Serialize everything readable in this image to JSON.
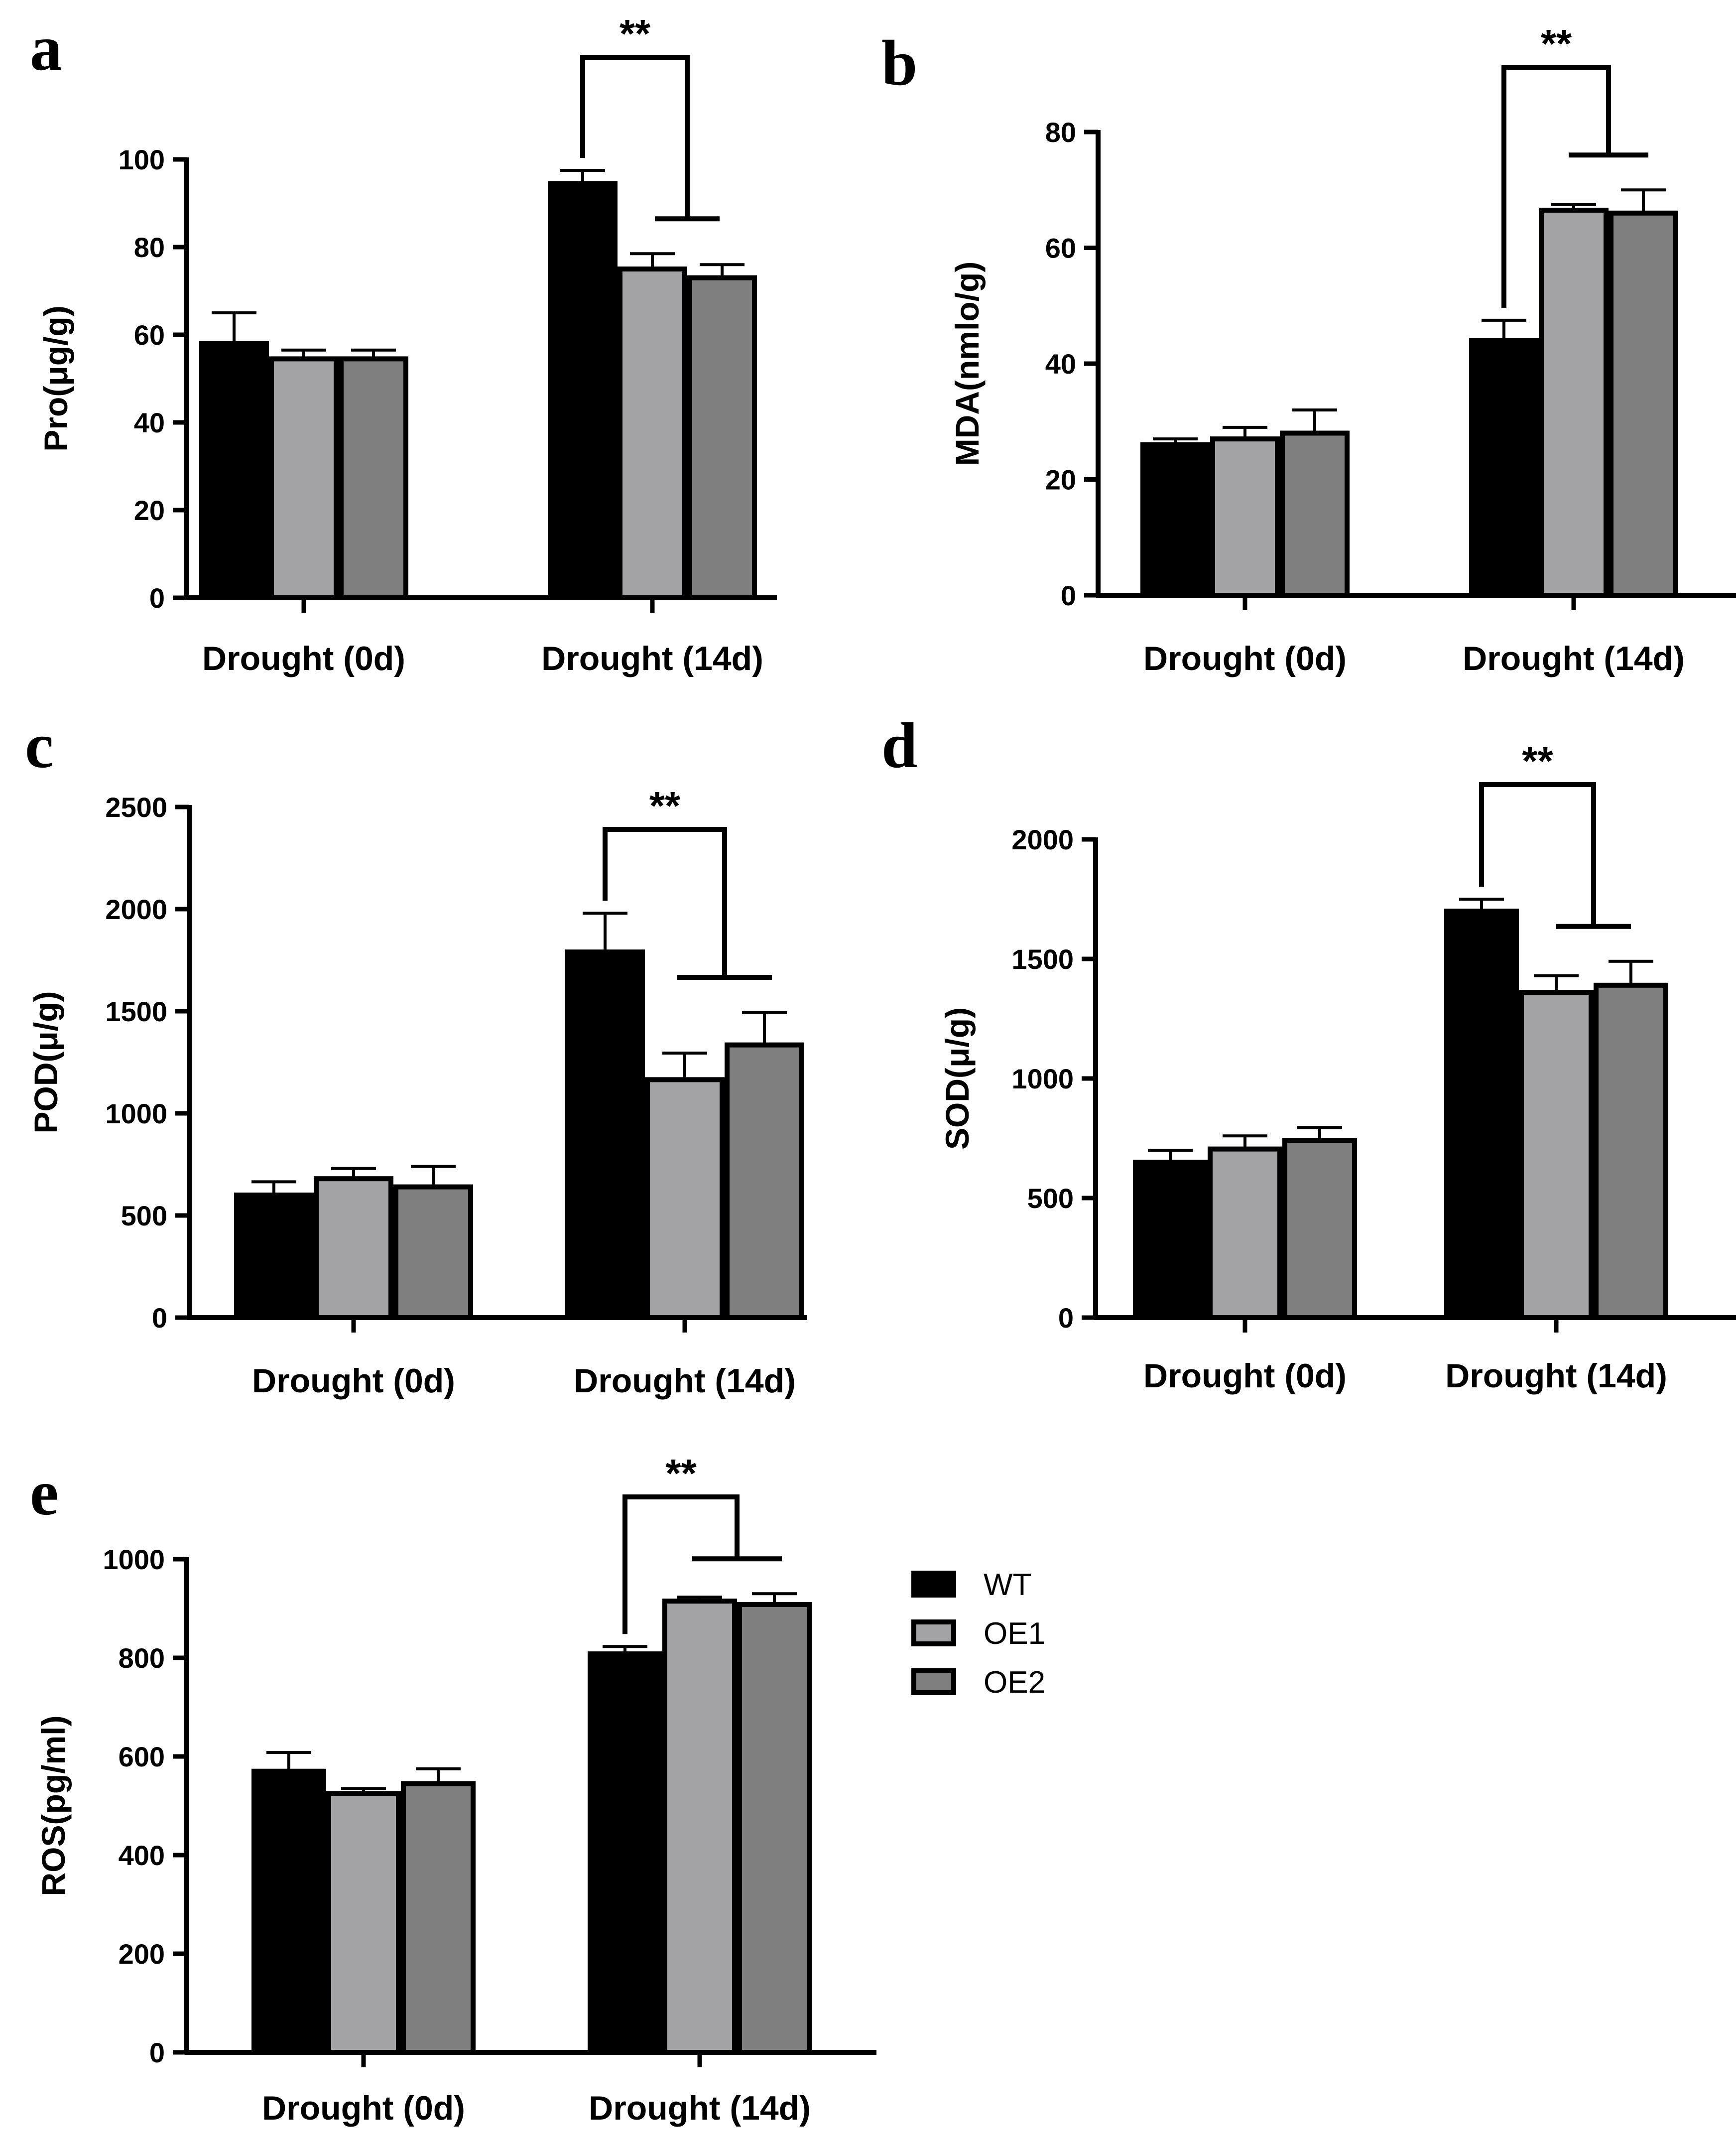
{
  "figure": {
    "legend": [
      {
        "label": "WT",
        "color": "#000000"
      },
      {
        "label": "OE1",
        "color": "#a3a3a6"
      },
      {
        "label": "OE2",
        "color": "#7f7f7f"
      }
    ]
  },
  "chart_data": [
    {
      "type": "bar",
      "panel_label": "a",
      "ylabel": "Pro(μg/g)",
      "categories": [
        "Drought (0d)",
        "Drought (14d)"
      ],
      "ylim": [
        0,
        100
      ],
      "yticks": [
        0,
        20,
        40,
        60,
        80,
        100
      ],
      "series": [
        {
          "name": "WT",
          "values": [
            58,
            94.5
          ],
          "errors": [
            7,
            3
          ]
        },
        {
          "name": "OE1",
          "values": [
            54.5,
            75
          ],
          "errors": [
            2,
            3.5
          ]
        },
        {
          "name": "OE2",
          "values": [
            54.5,
            73
          ],
          "errors": [
            2,
            3
          ]
        }
      ],
      "significance": "**"
    },
    {
      "type": "bar",
      "panel_label": "b",
      "ylabel": "MDA(nmlo/g)",
      "categories": [
        "Drought (0d)",
        "Drought (14d)"
      ],
      "ylim": [
        0,
        80
      ],
      "yticks": [
        0,
        20,
        40,
        60,
        80
      ],
      "series": [
        {
          "name": "WT",
          "values": [
            26,
            44
          ],
          "errors": [
            1,
            3.5
          ]
        },
        {
          "name": "OE1",
          "values": [
            27,
            66.5
          ],
          "errors": [
            2,
            1
          ]
        },
        {
          "name": "OE2",
          "values": [
            28,
            66
          ],
          "errors": [
            4,
            4
          ]
        }
      ],
      "significance": "**"
    },
    {
      "type": "bar",
      "panel_label": "c",
      "ylabel": "POD(μ/g)",
      "categories": [
        "Drought (0d)",
        "Drought (14d)"
      ],
      "ylim": [
        0,
        2500
      ],
      "yticks": [
        0,
        500,
        1000,
        1500,
        2000,
        2500
      ],
      "series": [
        {
          "name": "WT",
          "values": [
            600,
            1790
          ],
          "errors": [
            65,
            190
          ]
        },
        {
          "name": "OE1",
          "values": [
            680,
            1165
          ],
          "errors": [
            50,
            130
          ]
        },
        {
          "name": "OE2",
          "values": [
            640,
            1335
          ],
          "errors": [
            100,
            160
          ]
        }
      ],
      "significance": "**"
    },
    {
      "type": "bar",
      "panel_label": "d",
      "ylabel": "SOD(μ/g)",
      "categories": [
        "Drought (0d)",
        "Drought (14d)"
      ],
      "ylim": [
        0,
        2000
      ],
      "yticks": [
        0,
        500,
        1000,
        1500,
        2000
      ],
      "series": [
        {
          "name": "WT",
          "values": [
            650,
            1700
          ],
          "errors": [
            50,
            50
          ]
        },
        {
          "name": "OE1",
          "values": [
            705,
            1360
          ],
          "errors": [
            55,
            70
          ]
        },
        {
          "name": "OE2",
          "values": [
            740,
            1390
          ],
          "errors": [
            55,
            100
          ]
        }
      ],
      "significance": "**"
    },
    {
      "type": "bar",
      "panel_label": "e",
      "ylabel": "ROS(pg/ml)",
      "categories": [
        "Drought (0d)",
        "Drought (14d)"
      ],
      "ylim": [
        0,
        1000
      ],
      "yticks": [
        0,
        200,
        400,
        600,
        800,
        1000
      ],
      "series": [
        {
          "name": "WT",
          "values": [
            570,
            808
          ],
          "errors": [
            38,
            15
          ]
        },
        {
          "name": "OE1",
          "values": [
            525,
            915
          ],
          "errors": [
            10,
            8
          ]
        },
        {
          "name": "OE2",
          "values": [
            545,
            908
          ],
          "errors": [
            30,
            22
          ]
        }
      ],
      "significance": "**"
    }
  ]
}
